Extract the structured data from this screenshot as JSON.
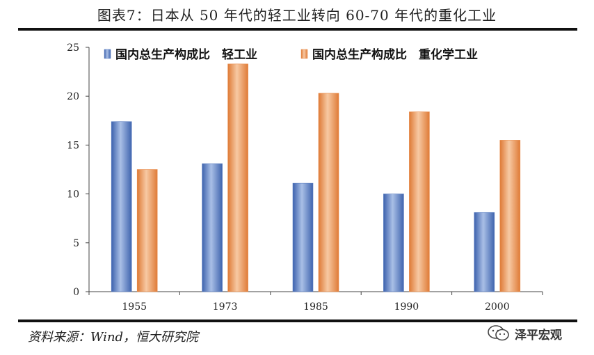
{
  "figure_title": "图表7：日本从 50 年代的轻工业转向 60-70 年代的重化工业",
  "source": "资料来源：Wind，恒大研究院",
  "watermark": "泽平宏观",
  "colors": {
    "light_industry": "#5b7ec0",
    "heavy_industry": "#e98e4f"
  },
  "chart_data": {
    "type": "bar",
    "categories": [
      "1955",
      "1973",
      "1985",
      "1990",
      "2000"
    ],
    "series": [
      {
        "name": "国内总生产构成比　轻工业",
        "values": [
          17.4,
          13.1,
          11.1,
          10.0,
          8.1
        ]
      },
      {
        "name": "国内总生产构成比　重化学工业",
        "values": [
          12.5,
          23.3,
          20.3,
          18.4,
          15.5
        ]
      }
    ],
    "y_ticks": [
      "0",
      "5",
      "10",
      "15",
      "20",
      "25"
    ],
    "ylim": [
      0,
      25
    ],
    "grid": false,
    "legend_position": "top"
  }
}
